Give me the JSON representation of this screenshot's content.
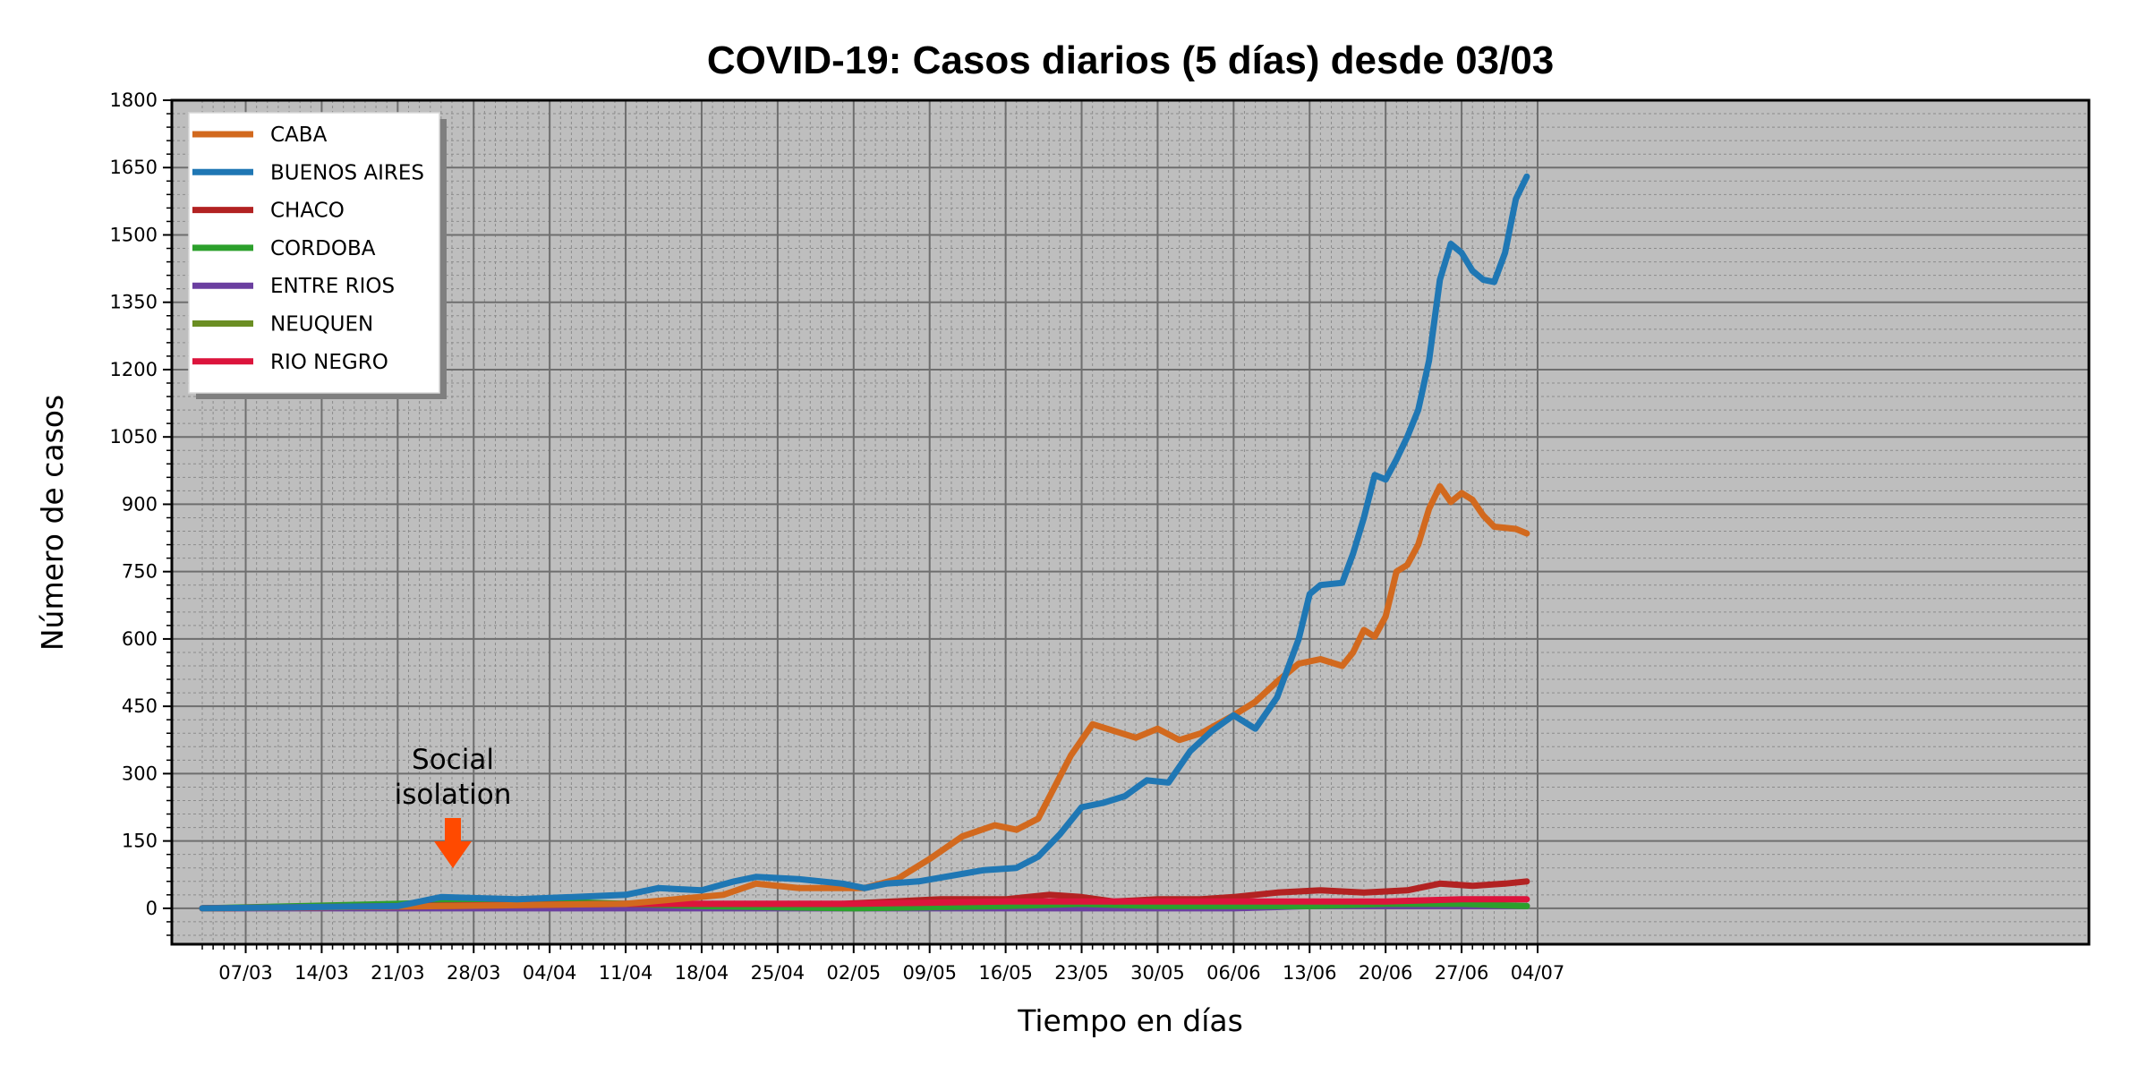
{
  "chart_data": {
    "type": "line",
    "title": "COVID-19: Casos diarios (5 días) desde 03/03",
    "xlabel": "Tiempo en días",
    "ylabel": "Número de casos",
    "x_start": "03/03",
    "x_tick_labels": [
      "07/03",
      "14/03",
      "21/03",
      "28/03",
      "04/04",
      "11/04",
      "18/04",
      "25/04",
      "02/05",
      "09/05",
      "16/05",
      "23/05",
      "30/05",
      "06/06",
      "13/06",
      "20/06",
      "27/06",
      "04/07"
    ],
    "y_ticks": [
      "0",
      "150",
      "300",
      "450",
      "600",
      "750",
      "900",
      "1050",
      "1200",
      "1350",
      "1500",
      "1650",
      "1800"
    ],
    "ylim": [
      -80,
      1800
    ],
    "grid": true,
    "legend_position": "top-left",
    "background": "#bebebe",
    "annotation": {
      "text_line1": "Social",
      "text_line2": "isolation",
      "date": "21/03",
      "arrow_color": "#ff4a00"
    },
    "series": [
      {
        "name": "CABA",
        "color": "#d2691e",
        "points": [
          [
            "03/03",
            0
          ],
          [
            "25/03",
            5
          ],
          [
            "11/04",
            10
          ],
          [
            "20/04",
            30
          ],
          [
            "23/04",
            55
          ],
          [
            "27/04",
            45
          ],
          [
            "03/05",
            45
          ],
          [
            "06/05",
            65
          ],
          [
            "09/05",
            110
          ],
          [
            "12/05",
            160
          ],
          [
            "15/05",
            185
          ],
          [
            "17/05",
            175
          ],
          [
            "19/05",
            200
          ],
          [
            "22/05",
            340
          ],
          [
            "24/05",
            410
          ],
          [
            "26/05",
            395
          ],
          [
            "28/05",
            380
          ],
          [
            "30/05",
            400
          ],
          [
            "01/06",
            375
          ],
          [
            "03/06",
            390
          ],
          [
            "06/06",
            430
          ],
          [
            "08/06",
            460
          ],
          [
            "10/06",
            505
          ],
          [
            "12/06",
            545
          ],
          [
            "14/06",
            555
          ],
          [
            "16/06",
            540
          ],
          [
            "17/06",
            570
          ],
          [
            "18/06",
            620
          ],
          [
            "19/06",
            605
          ],
          [
            "20/06",
            650
          ],
          [
            "21/06",
            750
          ],
          [
            "22/06",
            765
          ],
          [
            "23/06",
            810
          ],
          [
            "24/06",
            890
          ],
          [
            "25/06",
            940
          ],
          [
            "26/06",
            905
          ],
          [
            "27/06",
            925
          ],
          [
            "28/06",
            910
          ],
          [
            "29/06",
            875
          ],
          [
            "30/06",
            850
          ],
          [
            "02/07",
            845
          ],
          [
            "03/07",
            835
          ]
        ]
      },
      {
        "name": "BUENOS AIRES",
        "color": "#1f77b4",
        "points": [
          [
            "03/03",
            0
          ],
          [
            "21/03",
            5
          ],
          [
            "25/03",
            25
          ],
          [
            "01/04",
            20
          ],
          [
            "11/04",
            30
          ],
          [
            "14/04",
            45
          ],
          [
            "18/04",
            40
          ],
          [
            "21/04",
            60
          ],
          [
            "23/04",
            70
          ],
          [
            "27/04",
            65
          ],
          [
            "01/05",
            55
          ],
          [
            "03/05",
            45
          ],
          [
            "05/05",
            55
          ],
          [
            "08/05",
            60
          ],
          [
            "14/05",
            85
          ],
          [
            "17/05",
            90
          ],
          [
            "19/05",
            115
          ],
          [
            "21/05",
            165
          ],
          [
            "23/05",
            225
          ],
          [
            "25/05",
            235
          ],
          [
            "27/05",
            250
          ],
          [
            "29/05",
            285
          ],
          [
            "31/05",
            280
          ],
          [
            "02/06",
            350
          ],
          [
            "04/06",
            395
          ],
          [
            "06/06",
            430
          ],
          [
            "08/06",
            400
          ],
          [
            "10/06",
            470
          ],
          [
            "12/06",
            600
          ],
          [
            "13/06",
            700
          ],
          [
            "14/06",
            720
          ],
          [
            "16/06",
            725
          ],
          [
            "17/06",
            790
          ],
          [
            "18/06",
            870
          ],
          [
            "19/06",
            965
          ],
          [
            "20/06",
            955
          ],
          [
            "21/06",
            1000
          ],
          [
            "22/06",
            1050
          ],
          [
            "23/06",
            1110
          ],
          [
            "24/06",
            1220
          ],
          [
            "25/06",
            1400
          ],
          [
            "26/06",
            1480
          ],
          [
            "27/06",
            1460
          ],
          [
            "28/06",
            1420
          ],
          [
            "29/06",
            1400
          ],
          [
            "30/06",
            1395
          ],
          [
            "01/07",
            1460
          ],
          [
            "02/07",
            1580
          ],
          [
            "03/07",
            1630
          ]
        ]
      },
      {
        "name": "CHACO",
        "color": "#b22222",
        "points": [
          [
            "03/03",
            0
          ],
          [
            "25/03",
            5
          ],
          [
            "11/04",
            10
          ],
          [
            "01/05",
            10
          ],
          [
            "10/05",
            20
          ],
          [
            "16/05",
            20
          ],
          [
            "20/05",
            30
          ],
          [
            "23/05",
            25
          ],
          [
            "26/05",
            15
          ],
          [
            "30/05",
            20
          ],
          [
            "03/06",
            20
          ],
          [
            "06/06",
            25
          ],
          [
            "10/06",
            35
          ],
          [
            "14/06",
            40
          ],
          [
            "18/06",
            35
          ],
          [
            "22/06",
            40
          ],
          [
            "25/06",
            55
          ],
          [
            "28/06",
            50
          ],
          [
            "01/07",
            55
          ],
          [
            "03/07",
            60
          ]
        ]
      },
      {
        "name": "CORDOBA",
        "color": "#2ca02c",
        "points": [
          [
            "03/03",
            0
          ],
          [
            "21/03",
            10
          ],
          [
            "27/03",
            15
          ],
          [
            "04/04",
            15
          ],
          [
            "11/04",
            10
          ],
          [
            "18/04",
            5
          ],
          [
            "02/05",
            0
          ],
          [
            "16/05",
            5
          ],
          [
            "23/05",
            10
          ],
          [
            "30/05",
            5
          ],
          [
            "06/06",
            5
          ],
          [
            "13/06",
            5
          ],
          [
            "20/06",
            10
          ],
          [
            "27/06",
            10
          ],
          [
            "03/07",
            5
          ]
        ]
      },
      {
        "name": "ENTRE RIOS",
        "color": "#6b3fa0",
        "points": [
          [
            "03/03",
            0
          ],
          [
            "01/05",
            0
          ],
          [
            "06/06",
            0
          ],
          [
            "13/06",
            5
          ],
          [
            "20/06",
            5
          ],
          [
            "27/06",
            5
          ],
          [
            "03/07",
            5
          ]
        ]
      },
      {
        "name": "NEUQUEN",
        "color": "#6b8e23",
        "points": [
          [
            "03/03",
            0
          ],
          [
            "01/04",
            5
          ],
          [
            "01/05",
            5
          ],
          [
            "01/06",
            5
          ],
          [
            "03/07",
            5
          ]
        ]
      },
      {
        "name": "RIO NEGRO",
        "color": "#dc143c",
        "points": [
          [
            "03/03",
            0
          ],
          [
            "21/03",
            5
          ],
          [
            "11/04",
            10
          ],
          [
            "18/04",
            10
          ],
          [
            "02/05",
            10
          ],
          [
            "16/05",
            15
          ],
          [
            "23/05",
            15
          ],
          [
            "30/05",
            15
          ],
          [
            "06/06",
            15
          ],
          [
            "13/06",
            15
          ],
          [
            "20/06",
            15
          ],
          [
            "27/06",
            20
          ],
          [
            "03/07",
            20
          ]
        ]
      }
    ]
  }
}
